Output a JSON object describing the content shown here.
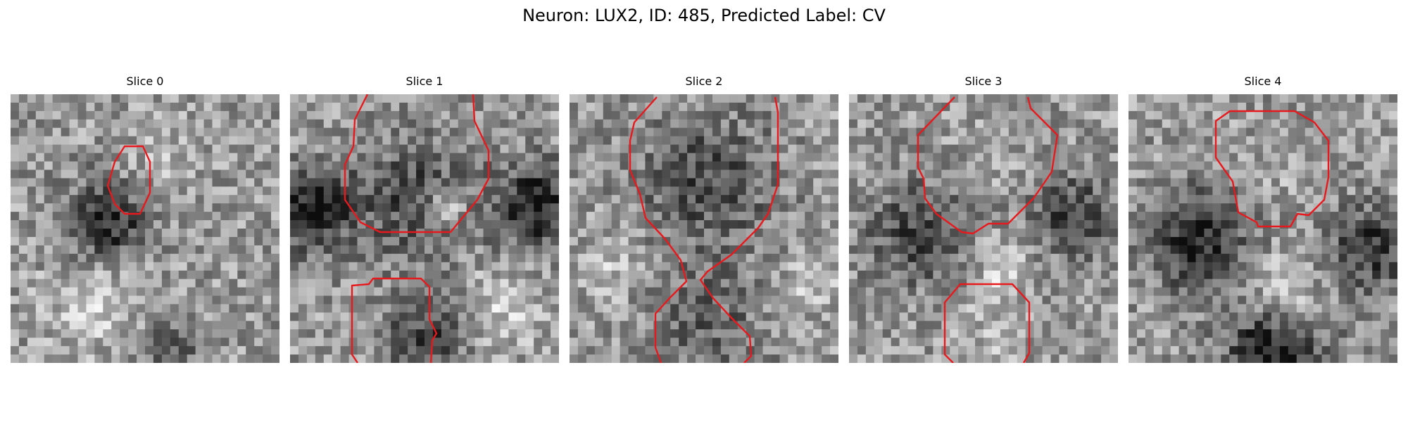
{
  "figure": {
    "title": "Neuron: LUX2, ID: 485, Predicted Label: CV"
  },
  "panels": [
    {
      "title": "Slice 0"
    },
    {
      "title": "Slice 1"
    },
    {
      "title": "Slice 2"
    },
    {
      "title": "Slice 3"
    },
    {
      "title": "Slice 4"
    }
  ],
  "colors": {
    "contour": "#e8191d",
    "background": "#ffffff"
  }
}
